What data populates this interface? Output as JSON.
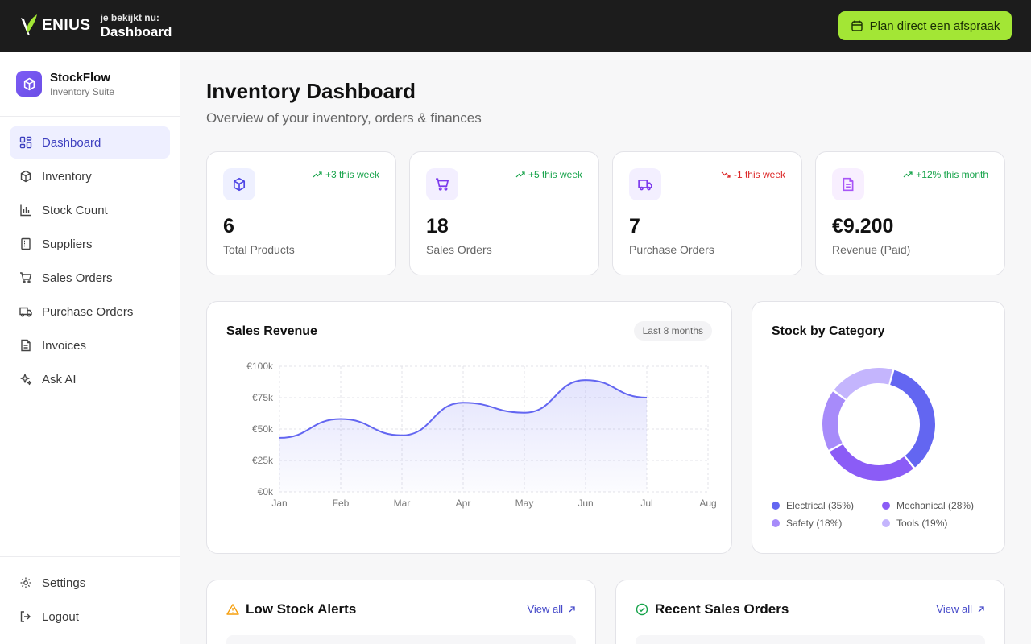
{
  "topbar": {
    "logo_text": "ENIUS",
    "viewing_label": "je bekijkt nu:",
    "viewing_value": "Dashboard",
    "cta_label": "Plan direct een afspraak",
    "cta_icon": "calendar-icon",
    "accent": "#a3e635"
  },
  "sidebar": {
    "brand_name": "StockFlow",
    "brand_sub": "Inventory Suite",
    "items": [
      {
        "label": "Dashboard",
        "icon": "grid-icon",
        "active": true
      },
      {
        "label": "Inventory",
        "icon": "box-icon"
      },
      {
        "label": "Stock Count",
        "icon": "bar-chart-icon"
      },
      {
        "label": "Suppliers",
        "icon": "building-icon"
      },
      {
        "label": "Sales Orders",
        "icon": "cart-icon"
      },
      {
        "label": "Purchase Orders",
        "icon": "truck-icon"
      },
      {
        "label": "Invoices",
        "icon": "document-icon"
      },
      {
        "label": "Ask AI",
        "icon": "sparkles-icon"
      }
    ],
    "bottom_items": [
      {
        "label": "Settings",
        "icon": "gear-icon"
      },
      {
        "label": "Logout",
        "icon": "logout-icon"
      }
    ]
  },
  "main": {
    "title": "Inventory Dashboard",
    "subtitle": "Overview of your inventory, orders & finances",
    "stats": [
      {
        "value": "6",
        "label": "Total Products",
        "trend": "+3 this week",
        "direction": "up",
        "icon": "box-icon",
        "icon_color": "#4f46e5",
        "icon_bg": "#eef0ff"
      },
      {
        "value": "18",
        "label": "Sales Orders",
        "trend": "+5 this week",
        "direction": "up",
        "icon": "cart-icon",
        "icon_color": "#7c3aed",
        "icon_bg": "#f3efff"
      },
      {
        "value": "7",
        "label": "Purchase Orders",
        "trend": "-1 this week",
        "direction": "down",
        "icon": "truck-icon",
        "icon_color": "#7c3aed",
        "icon_bg": "#f3efff"
      },
      {
        "value": "€9.200",
        "label": "Revenue (Paid)",
        "trend": "+12% this month",
        "direction": "up",
        "icon": "document-icon",
        "icon_color": "#a855f7",
        "icon_bg": "#f8efff"
      }
    ],
    "revenue_card": {
      "title": "Sales Revenue",
      "range_label": "Last 8 months"
    },
    "category_card": {
      "title": "Stock by Category"
    },
    "low_stock": {
      "title": "Low Stock Alerts",
      "link": "View all",
      "icon": "warning-icon"
    },
    "recent_sales": {
      "title": "Recent Sales Orders",
      "link": "View all",
      "icon": "check-circle-icon"
    }
  },
  "chart_data": [
    {
      "type": "area",
      "title": "Sales Revenue",
      "categories": [
        "Jan",
        "Feb",
        "Mar",
        "Apr",
        "May",
        "Jun",
        "Jul",
        "Aug"
      ],
      "values": [
        43000,
        58000,
        45000,
        71000,
        63000,
        89000,
        75000,
        null
      ],
      "y_ticks": [
        "€0k",
        "€25k",
        "€50k",
        "€75k",
        "€100k"
      ],
      "ylim": [
        0,
        100000
      ],
      "grid": true,
      "color": "#6366f1"
    },
    {
      "type": "pie",
      "title": "Stock by Category",
      "labels": [
        "Electrical",
        "Mechanical",
        "Safety",
        "Tools"
      ],
      "legend_labels": [
        "Electrical (35%)",
        "Mechanical (28%)",
        "Safety (18%)",
        "Tools (19%)"
      ],
      "values": [
        35,
        28,
        18,
        19
      ],
      "colors": [
        "#6366f1",
        "#8b5cf6",
        "#a78bfa",
        "#c4b5fd"
      ],
      "legend": "bottom"
    }
  ]
}
